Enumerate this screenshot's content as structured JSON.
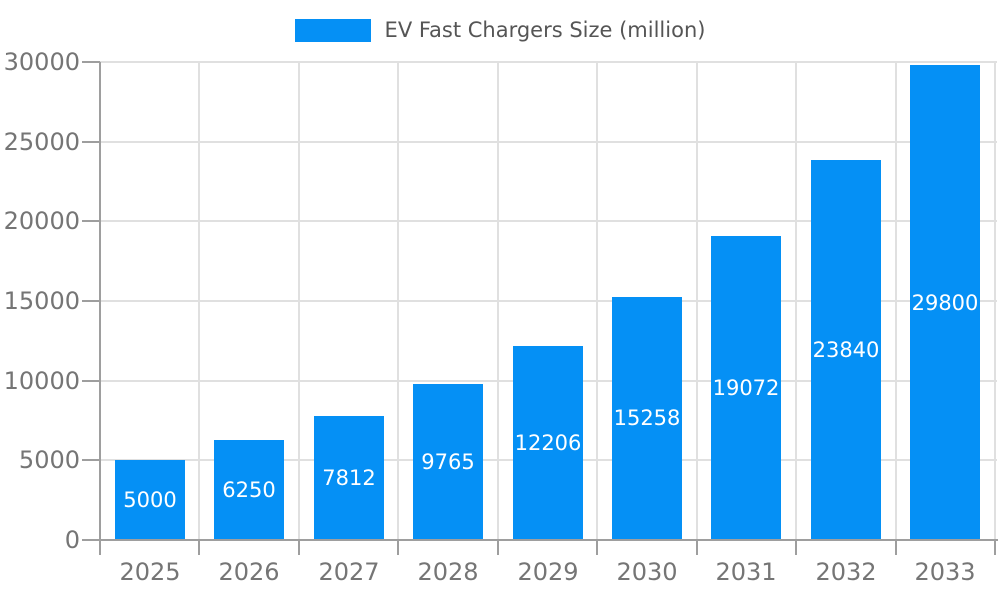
{
  "chart_data": {
    "type": "bar",
    "title": "EV Fast Chargers Size (million)",
    "categories": [
      "2025",
      "2026",
      "2027",
      "2028",
      "2029",
      "2030",
      "2031",
      "2032",
      "2033"
    ],
    "series": [
      {
        "name": "EV Fast Chargers Size (million)",
        "values": [
          5000,
          6250,
          7812,
          9765,
          12206,
          15258,
          19072,
          23840,
          29800
        ]
      }
    ],
    "xlabel": "",
    "ylabel": "",
    "ylim": [
      0,
      30000
    ],
    "yticks": [
      0,
      5000,
      10000,
      15000,
      20000,
      25000,
      30000
    ],
    "grid": true,
    "legend_position": "top-center",
    "value_labels": {
      "position": "inside-center"
    },
    "colors": {
      "bar": "#0590f5",
      "grid": "#e0e0e0",
      "axis": "#9e9e9e",
      "tick_text": "#757575",
      "legend_text": "#555555",
      "value_label": "#ffffff",
      "background": "#ffffff"
    }
  }
}
